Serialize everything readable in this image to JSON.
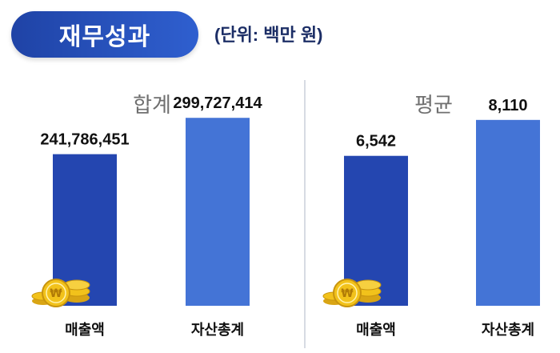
{
  "header": {
    "title": "재무성과",
    "unit_note": "(단위: 백만 원)"
  },
  "colors": {
    "header_bg": "#2a53c1",
    "revenue_bar": "#2446b0",
    "assets_bar": "#4474d6",
    "divider": "#d7dbe3",
    "coin": "#f2c21b"
  },
  "chart_data": [
    {
      "type": "bar",
      "title": "합계",
      "categories": [
        "매출액",
        "자산총계"
      ],
      "values": [
        241786451,
        299727414
      ],
      "value_labels": [
        "241,786,451",
        "299,727,414"
      ],
      "ylim": [
        0,
        360000000
      ],
      "grid": false,
      "icons": [
        "coin-stack-icon",
        null
      ]
    },
    {
      "type": "bar",
      "title": "평균",
      "categories": [
        "매출액",
        "자산총계"
      ],
      "values": [
        6542,
        8110
      ],
      "value_labels": [
        "6,542",
        "8,110"
      ],
      "ylim": [
        0,
        9850
      ],
      "grid": false,
      "icons": [
        "coin-stack-icon",
        null
      ]
    }
  ]
}
